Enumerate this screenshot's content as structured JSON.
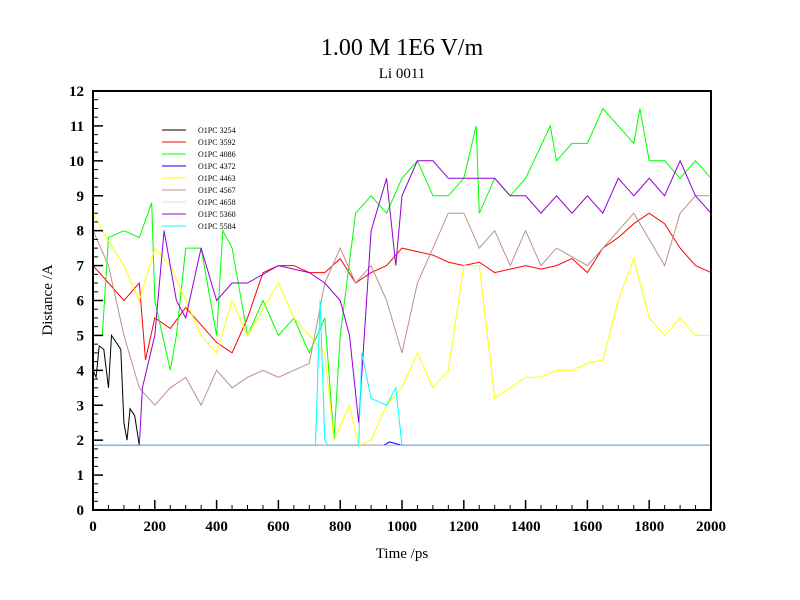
{
  "chart_data": {
    "type": "line",
    "title": "1.00 M 1E6 V/m",
    "subtitle": "Li 0011",
    "xlabel": "Time /ps",
    "ylabel": "Distance /A",
    "xlim": [
      0,
      2000
    ],
    "ylim": [
      0,
      12
    ],
    "xticks": [
      "0",
      "200",
      "400",
      "600",
      "800",
      "1000",
      "1200",
      "1400",
      "1600",
      "1800",
      "2000"
    ],
    "yticks": [
      "0",
      "1",
      "2",
      "3",
      "4",
      "5",
      "6",
      "7",
      "8",
      "9",
      "10",
      "11",
      "12"
    ],
    "grid": false,
    "legend_position": "top-left",
    "series": [
      {
        "name": "O1PC 3254",
        "color": "#000000",
        "x": [
          0,
          10,
          20,
          35,
          50,
          60,
          75,
          90,
          100,
          110,
          120,
          135,
          150,
          200,
          400,
          600,
          800,
          1000,
          1200,
          1400,
          1600,
          1800,
          2000
        ],
        "y": [
          4.0,
          3.8,
          4.7,
          4.6,
          3.5,
          5.0,
          4.8,
          4.6,
          2.5,
          2.0,
          2.9,
          2.7,
          1.85,
          1.85,
          1.85,
          1.85,
          1.85,
          1.85,
          1.85,
          1.85,
          1.85,
          1.85,
          1.85
        ]
      },
      {
        "name": "O1PC 3592",
        "color": "#ff0000",
        "x": [
          0,
          50,
          100,
          150,
          170,
          200,
          250,
          300,
          350,
          400,
          450,
          500,
          550,
          600,
          650,
          700,
          750,
          800,
          850,
          900,
          950,
          1000,
          1050,
          1100,
          1150,
          1200,
          1250,
          1300,
          1350,
          1400,
          1450,
          1500,
          1550,
          1600,
          1650,
          1700,
          1750,
          1800,
          1850,
          1900,
          1950,
          2000
        ],
        "y": [
          7.0,
          6.5,
          6.0,
          6.5,
          4.3,
          5.5,
          5.2,
          5.8,
          5.3,
          4.8,
          4.5,
          5.5,
          6.8,
          7.0,
          7.0,
          6.8,
          6.8,
          7.2,
          6.5,
          6.8,
          7.0,
          7.5,
          7.4,
          7.3,
          7.1,
          7.0,
          7.1,
          6.8,
          6.9,
          7.0,
          6.9,
          7.0,
          7.2,
          6.8,
          7.5,
          7.8,
          8.2,
          8.5,
          8.2,
          7.5,
          7.0,
          6.8
        ]
      },
      {
        "name": "O1PC 4086",
        "color": "#00ff00",
        "x": [
          0,
          30,
          50,
          100,
          150,
          190,
          200,
          250,
          270,
          300,
          350,
          400,
          420,
          450,
          500,
          550,
          600,
          650,
          700,
          750,
          780,
          800,
          850,
          900,
          950,
          1000,
          1050,
          1100,
          1150,
          1200,
          1240,
          1250,
          1300,
          1350,
          1400,
          1480,
          1500,
          1550,
          1600,
          1650,
          1700,
          1750,
          1770,
          1800,
          1850,
          1900,
          1950,
          2000
        ],
        "y": [
          5.0,
          5.0,
          7.8,
          8.0,
          7.8,
          8.8,
          6.0,
          4.0,
          5.0,
          7.5,
          7.5,
          5.0,
          8.0,
          7.5,
          5.0,
          6.0,
          5.0,
          5.5,
          4.5,
          5.5,
          2.0,
          5.0,
          8.5,
          9.0,
          8.5,
          9.5,
          10.0,
          9.0,
          9.0,
          9.5,
          11.0,
          8.5,
          9.5,
          9.0,
          9.5,
          11.0,
          10.0,
          10.5,
          10.5,
          11.5,
          11.0,
          10.5,
          11.5,
          10.0,
          10.0,
          9.5,
          10.0,
          9.5
        ]
      },
      {
        "name": "O1PC 4372",
        "color": "#0000ff",
        "x": [
          0,
          200,
          400,
          600,
          800,
          940,
          960,
          1000,
          1200,
          1400,
          1600,
          1800,
          2000
        ],
        "y": [
          1.85,
          1.85,
          1.85,
          1.85,
          1.85,
          1.85,
          1.95,
          1.85,
          1.85,
          1.85,
          1.85,
          1.85,
          1.85
        ]
      },
      {
        "name": "O1PC 4463",
        "color": "#ffff00",
        "x": [
          0,
          30,
          100,
          150,
          200,
          250,
          300,
          350,
          400,
          450,
          500,
          600,
          650,
          700,
          750,
          780,
          830,
          860,
          900,
          950,
          1000,
          1050,
          1100,
          1150,
          1200,
          1250,
          1300,
          1350,
          1400,
          1450,
          1500,
          1550,
          1600,
          1650,
          1700,
          1750,
          1800,
          1850,
          1900,
          1950,
          2000
        ],
        "y": [
          8.5,
          8.0,
          7.0,
          6.0,
          7.5,
          7.0,
          6.0,
          5.0,
          4.5,
          6.0,
          5.0,
          6.5,
          5.5,
          5.0,
          4.5,
          2.0,
          3.0,
          1.85,
          2.0,
          3.0,
          3.5,
          4.5,
          3.5,
          4.0,
          7.0,
          7.0,
          3.2,
          3.5,
          3.8,
          3.8,
          4.0,
          4.0,
          4.2,
          4.3,
          6.0,
          7.2,
          5.5,
          5.0,
          5.5,
          5.0,
          5.0
        ]
      },
      {
        "name": "O1PC 4567",
        "color": "#bc8f8f",
        "x": [
          0,
          50,
          100,
          150,
          200,
          250,
          300,
          350,
          400,
          450,
          500,
          550,
          600,
          650,
          700,
          750,
          800,
          850,
          900,
          950,
          1000,
          1050,
          1100,
          1150,
          1200,
          1250,
          1300,
          1350,
          1400,
          1450,
          1500,
          1600,
          1700,
          1750,
          1850,
          1900,
          1950,
          2000
        ],
        "y": [
          8.0,
          7.0,
          5.0,
          3.5,
          3.0,
          3.5,
          3.8,
          3.0,
          4.0,
          3.5,
          3.8,
          4.0,
          3.8,
          4.0,
          4.2,
          6.5,
          7.5,
          6.5,
          7.0,
          6.0,
          4.5,
          6.5,
          7.5,
          8.5,
          8.5,
          7.5,
          8.0,
          7.0,
          8.0,
          7.0,
          7.5,
          7.0,
          8.0,
          8.5,
          7.0,
          8.5,
          9.0,
          9.0
        ]
      },
      {
        "name": "O1PC 4658",
        "color": "#dcdcdc",
        "x": [
          0,
          200,
          400,
          600,
          800,
          1000,
          1200,
          1400,
          1600,
          1800,
          2000
        ],
        "y": [
          1.85,
          1.85,
          1.85,
          1.85,
          1.85,
          1.85,
          1.85,
          1.85,
          1.85,
          1.85,
          1.85
        ]
      },
      {
        "name": "O1PC 5360",
        "color": "#9400d3",
        "x": [
          0,
          150,
          160,
          200,
          230,
          270,
          300,
          350,
          400,
          450,
          500,
          600,
          700,
          750,
          800,
          830,
          860,
          900,
          950,
          980,
          1000,
          1050,
          1100,
          1150,
          1200,
          1300,
          1350,
          1400,
          1450,
          1500,
          1550,
          1600,
          1650,
          1700,
          1750,
          1800,
          1850,
          1900,
          1950,
          2000
        ],
        "y": [
          1.85,
          1.85,
          3.5,
          5.0,
          8.0,
          6.0,
          5.5,
          7.5,
          6.0,
          6.5,
          6.5,
          7.0,
          6.8,
          6.5,
          6.0,
          5.0,
          2.5,
          8.0,
          9.5,
          7.0,
          9.0,
          10.0,
          10.0,
          9.5,
          9.5,
          9.5,
          9.0,
          9.0,
          8.5,
          9.0,
          8.5,
          9.0,
          8.5,
          9.5,
          9.0,
          9.5,
          9.0,
          10.0,
          9.0,
          8.5
        ]
      },
      {
        "name": "O1PC 5584",
        "color": "#00ffff",
        "x": [
          0,
          200,
          400,
          600,
          720,
          735,
          750,
          760,
          800,
          860,
          870,
          900,
          950,
          980,
          1000,
          1200,
          1400,
          1600,
          1800,
          2000
        ],
        "y": [
          1.85,
          1.85,
          1.85,
          1.85,
          1.85,
          6.0,
          2.0,
          1.85,
          1.85,
          1.85,
          4.5,
          3.2,
          3.0,
          3.5,
          1.85,
          1.85,
          1.85,
          1.85,
          1.85,
          1.85
        ]
      }
    ]
  }
}
